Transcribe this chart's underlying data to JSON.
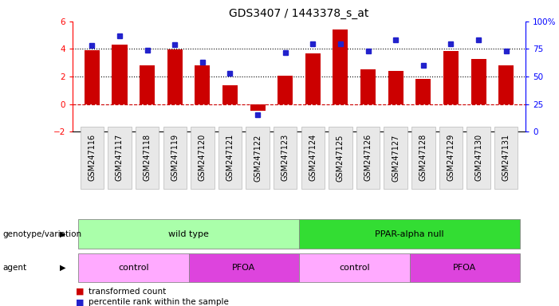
{
  "title": "GDS3407 / 1443378_s_at",
  "samples": [
    "GSM247116",
    "GSM247117",
    "GSM247118",
    "GSM247119",
    "GSM247120",
    "GSM247121",
    "GSM247122",
    "GSM247123",
    "GSM247124",
    "GSM247125",
    "GSM247126",
    "GSM247127",
    "GSM247128",
    "GSM247129",
    "GSM247130",
    "GSM247131"
  ],
  "transformed_count": [
    3.9,
    4.3,
    2.8,
    3.95,
    2.8,
    1.35,
    -0.5,
    2.05,
    3.7,
    5.4,
    2.5,
    2.4,
    1.85,
    3.85,
    3.25,
    2.8
  ],
  "percentile_rank": [
    78,
    87,
    74,
    79,
    63,
    53,
    15,
    72,
    80,
    80,
    73,
    83,
    60,
    80,
    83,
    73
  ],
  "ylim_left": [
    -2,
    6
  ],
  "ylim_right": [
    0,
    100
  ],
  "yticks_left": [
    -2,
    0,
    2,
    4,
    6
  ],
  "yticks_right": [
    0,
    25,
    50,
    75,
    100
  ],
  "ytick_labels_right": [
    "0",
    "25",
    "50",
    "75",
    "100%"
  ],
  "bar_color": "#cc0000",
  "dot_color": "#2222cc",
  "genotype_groups": [
    {
      "label": "wild type",
      "start": 0,
      "end": 7,
      "color": "#aaffaa"
    },
    {
      "label": "PPAR-alpha null",
      "start": 8,
      "end": 15,
      "color": "#33dd33"
    }
  ],
  "agent_groups": [
    {
      "label": "control",
      "start": 0,
      "end": 3,
      "color": "#ffaaff"
    },
    {
      "label": "PFOA",
      "start": 4,
      "end": 7,
      "color": "#dd44dd"
    },
    {
      "label": "control",
      "start": 8,
      "end": 11,
      "color": "#ffaaff"
    },
    {
      "label": "PFOA",
      "start": 12,
      "end": 15,
      "color": "#dd44dd"
    }
  ],
  "legend_items": [
    {
      "label": "transformed count",
      "color": "#cc0000"
    },
    {
      "label": "percentile rank within the sample",
      "color": "#2222cc"
    }
  ]
}
